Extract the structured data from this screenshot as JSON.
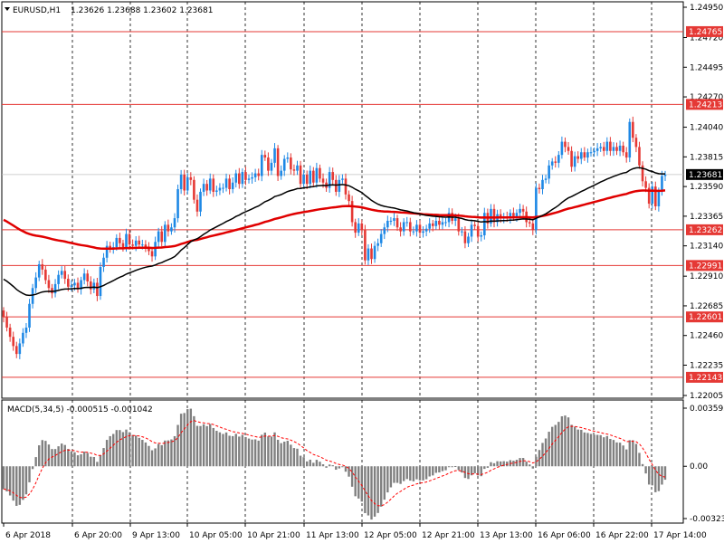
{
  "header": {
    "symbol": "EURUSD,H1",
    "ohlc": "1.23626 1.23688 1.23602 1.23681"
  },
  "macd_header": {
    "label": "MACD(5,34,5) -0.000515 -0.001042"
  },
  "colors": {
    "bull": "#1e88e5",
    "bear": "#e53935",
    "level_line": "#e53935",
    "ma_slow": "#e00000",
    "ma_fast": "#000000",
    "hist": "#808080",
    "signal": "#ff0000",
    "current_price_tag": "#000000"
  },
  "chart_data": [
    {
      "type": "candlestick",
      "title": "EURUSD,H1",
      "ylim": [
        1.22005,
        1.2495
      ],
      "y_ticks": [
        "1.24950",
        "1.24720",
        "1.24495",
        "1.24270",
        "1.24040",
        "1.23815",
        "1.23590",
        "1.23365",
        "1.23140",
        "1.22910",
        "1.22685",
        "1.22460",
        "1.22235",
        "1.22005"
      ],
      "x_ticks": [
        "6 Apr 2018",
        "6 Apr 20:00",
        "9 Apr 13:00",
        "10 Apr 05:00",
        "10 Apr 21:00",
        "11 Apr 13:00",
        "12 Apr 05:00",
        "12 Apr 21:00",
        "13 Apr 13:00",
        "16 Apr 06:00",
        "16 Apr 22:00",
        "17 Apr 14:00"
      ],
      "current_price": "1.23681",
      "horizontal_levels": [
        "1.24765",
        "1.24213",
        "1.23262",
        "1.22991",
        "1.22601",
        "1.22143"
      ],
      "series": [
        {
          "type": "candles",
          "close": [
            1.226,
            1.2252,
            1.2245,
            1.2238,
            1.2232,
            1.224,
            1.2248,
            1.2252,
            1.227,
            1.2282,
            1.229,
            1.23,
            1.2296,
            1.2288,
            1.2282,
            1.2278,
            1.2285,
            1.2292,
            1.2295,
            1.2289,
            1.2283,
            1.2284,
            1.2286,
            1.2281,
            1.2288,
            1.2293,
            1.2287,
            1.2281,
            1.2286,
            1.2276,
            1.2298,
            1.2305,
            1.2314,
            1.2312,
            1.2313,
            1.232,
            1.2316,
            1.2313,
            1.2323,
            1.2315,
            1.2314,
            1.2318,
            1.2315,
            1.2315,
            1.2313,
            1.231,
            1.2306,
            1.2317,
            1.2325,
            1.2317,
            1.233,
            1.2325,
            1.2328,
            1.2335,
            1.2357,
            1.2368,
            1.2356,
            1.2366,
            1.2364,
            1.2349,
            1.234,
            1.2355,
            1.2361,
            1.2356,
            1.2365,
            1.2355,
            1.2356,
            1.2358,
            1.2358,
            1.2365,
            1.2357,
            1.2362,
            1.2369,
            1.2361,
            1.237,
            1.2364,
            1.2365,
            1.2366,
            1.2369,
            1.2367,
            1.2383,
            1.2381,
            1.2371,
            1.2377,
            1.2388,
            1.2367,
            1.2371,
            1.238,
            1.2381,
            1.2372,
            1.2371,
            1.2375,
            1.2361,
            1.2368,
            1.2361,
            1.2371,
            1.2362,
            1.2373,
            1.2365,
            1.2362,
            1.2358,
            1.237,
            1.2364,
            1.2355,
            1.2364,
            1.2365,
            1.2353,
            1.2348,
            1.2332,
            1.2324,
            1.2331,
            1.2326,
            1.2303,
            1.2312,
            1.2304,
            1.2314,
            1.2316,
            1.2323,
            1.2328,
            1.2333,
            1.2333,
            1.2335,
            1.2328,
            1.2325,
            1.2332,
            1.2332,
            1.2325,
            1.2325,
            1.233,
            1.2324,
            1.2325,
            1.2327,
            1.2331,
            1.2329,
            1.2333,
            1.233,
            1.2332,
            1.2332,
            1.2339,
            1.2333,
            1.2335,
            1.2325,
            1.2325,
            1.2316,
            1.2321,
            1.233,
            1.2329,
            1.2321,
            1.2322,
            1.2339,
            1.2331,
            1.2342,
            1.2332,
            1.2338,
            1.2335,
            1.2336,
            1.2335,
            1.2339,
            1.2336,
            1.2339,
            1.2342,
            1.234,
            1.2332,
            1.2331,
            1.2326,
            1.2358,
            1.2357,
            1.2364,
            1.2365,
            1.2375,
            1.2378,
            1.2377,
            1.2383,
            1.2393,
            1.2389,
            1.2386,
            1.2374,
            1.2382,
            1.238,
            1.2385,
            1.2381,
            1.2385,
            1.2385,
            1.2386,
            1.2388,
            1.2389,
            1.2386,
            1.2393,
            1.2386,
            1.2389,
            1.2386,
            1.239,
            1.2385,
            1.2381,
            1.2408,
            1.2396,
            1.2389,
            1.2375,
            1.2363,
            1.2358,
            1.2346,
            1.2359,
            1.2344,
            1.2355,
            1.2367,
            1.2368
          ]
        },
        {
          "name": "",
          "type": "moving_average",
          "color": "#e00000"
        },
        {
          "name": "",
          "type": "moving_average",
          "color": "#000000"
        }
      ]
    },
    {
      "type": "bar",
      "title": "MACD(5,34,5)",
      "values_label": "-0.000515 -0.001042",
      "ylim": [
        -0.003233,
        0.003595
      ],
      "y_ticks": [
        "0.003595",
        "0.00",
        "-0.003233"
      ],
      "series": [
        {
          "name": "",
          "type": "histogram",
          "color": "#808080"
        },
        {
          "name": "",
          "type": "signal",
          "color": "#ff0000"
        }
      ]
    }
  ]
}
